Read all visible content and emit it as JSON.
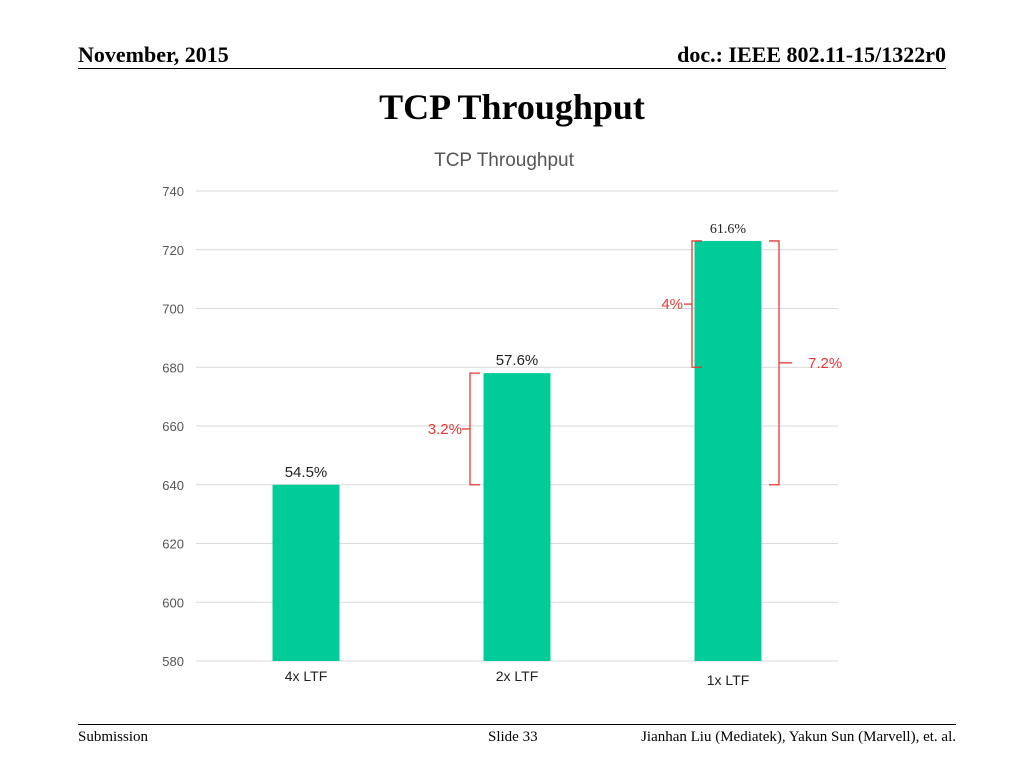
{
  "header": {
    "date": "November, 2015",
    "doc": "doc.: IEEE 802.11-15/1322r0"
  },
  "slide_title": "TCP Throughput",
  "chart_data": {
    "type": "bar",
    "title": "TCP Throughput",
    "categories": [
      "4x LTF",
      "2x LTF",
      "1x LTF"
    ],
    "values": [
      640,
      678,
      723
    ],
    "data_labels": [
      "54.5%",
      "57.6%",
      "61.6%"
    ],
    "ylim": [
      580,
      740
    ],
    "yticks": [
      580,
      600,
      620,
      640,
      660,
      680,
      700,
      720,
      740
    ],
    "grid": true,
    "bar_color": "#00cc99",
    "annotation_color": "#e53935",
    "annotations": [
      {
        "label": "3.2%",
        "from": 640,
        "to": 678
      },
      {
        "label": "4%",
        "from": 680,
        "to": 723
      },
      {
        "label": "7.2%",
        "from": 640,
        "to": 723
      }
    ]
  },
  "footer": {
    "left": "Submission",
    "slide": "Slide 33",
    "authors": "Jianhan Liu (Mediatek), Yakun Sun (Marvell),  et. al."
  }
}
